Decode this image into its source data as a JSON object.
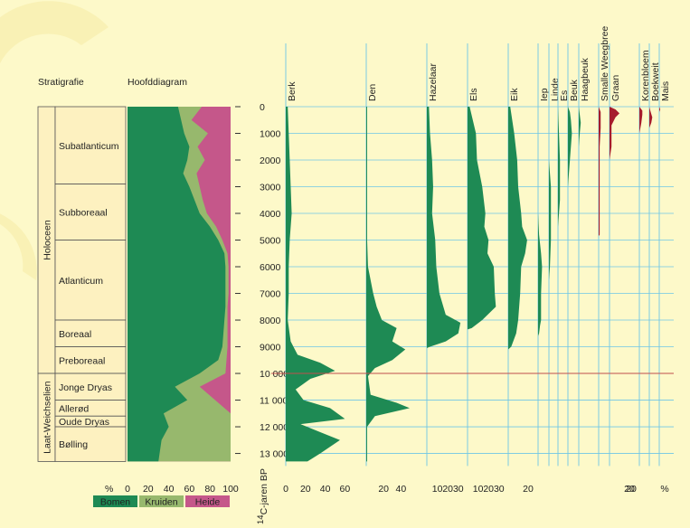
{
  "headers": {
    "stratigraphy": "Stratigrafie",
    "main_diagram": "Hoofddiagram"
  },
  "stratigraphy": {
    "groups": [
      {
        "label": "Holoceen",
        "from": 0,
        "to": 10000
      },
      {
        "label": "Laat-Weichselien",
        "from": 10000,
        "to": 13300
      }
    ],
    "zones": [
      {
        "label": "Subatlanticum",
        "from": 0,
        "to": 2900
      },
      {
        "label": "Subboreaal",
        "from": 2900,
        "to": 5000
      },
      {
        "label": "Atlanticum",
        "from": 5000,
        "to": 8000
      },
      {
        "label": "Boreaal",
        "from": 8000,
        "to": 9000
      },
      {
        "label": "Preboreaal",
        "from": 9000,
        "to": 10000
      },
      {
        "label": "Jonge Dryas",
        "from": 10000,
        "to": 11000
      },
      {
        "label": "Allerød",
        "from": 11000,
        "to": 11600
      },
      {
        "label": "Oude Dryas",
        "from": 11600,
        "to": 12000
      },
      {
        "label": "Bølling",
        "from": 12000,
        "to": 13300
      }
    ]
  },
  "chart_data": {
    "type": "area",
    "y_axis": {
      "label": "14C-jaren BP",
      "label_sup": "14",
      "label_rest": "C-jaren BP",
      "ticks": [
        0,
        1000,
        2000,
        3000,
        4000,
        5000,
        6000,
        7000,
        8000,
        9000,
        10000,
        11000,
        12000,
        13000
      ],
      "tick_labels": [
        "0",
        "1000",
        "2000",
        "3000",
        "4000",
        "5000",
        "6000",
        "7000",
        "8000",
        "9000",
        "10 000",
        "11 000",
        "12 000",
        "13 000"
      ],
      "range": [
        0,
        13300
      ]
    },
    "boundary_line": 10000,
    "main_diagram": {
      "unit": "%",
      "x_ticks": [
        "0",
        "20",
        "40",
        "60",
        "80",
        "100"
      ],
      "depths": [
        0,
        500,
        1000,
        1500,
        2000,
        2500,
        3000,
        3500,
        4000,
        4500,
        5000,
        5500,
        6000,
        6500,
        7000,
        7500,
        8000,
        8500,
        9000,
        9500,
        10000,
        10500,
        11000,
        11500,
        12000,
        12500,
        13300
      ],
      "bomen_cum": [
        49,
        52,
        55,
        60,
        58,
        54,
        60,
        65,
        70,
        80,
        88,
        94,
        95,
        95,
        95,
        95,
        94,
        93,
        92,
        88,
        70,
        46,
        58,
        35,
        40,
        33,
        30
      ],
      "kruiden_cum": [
        72,
        62,
        78,
        68,
        75,
        67,
        70,
        73,
        77,
        86,
        92,
        97,
        98,
        98,
        98,
        97,
        97,
        97,
        97,
        96,
        95,
        70,
        85,
        100,
        100,
        100,
        100
      ],
      "legend": [
        {
          "label": "Bomen",
          "color": "#1e8a54"
        },
        {
          "label": "Kruiden",
          "color": "#97b86d"
        },
        {
          "label": "Heide",
          "color": "#c5578a"
        }
      ]
    },
    "series": [
      {
        "name": "Berk",
        "scale": 80,
        "ticks": [
          "0",
          "20",
          "40",
          "60"
        ],
        "points": [
          [
            0,
            2
          ],
          [
            1000,
            3
          ],
          [
            2000,
            4
          ],
          [
            3000,
            5
          ],
          [
            4000,
            6
          ],
          [
            5000,
            4
          ],
          [
            6000,
            3
          ],
          [
            7000,
            3
          ],
          [
            8000,
            2
          ],
          [
            8800,
            5
          ],
          [
            9300,
            12
          ],
          [
            9600,
            35
          ],
          [
            9900,
            50
          ],
          [
            10200,
            25
          ],
          [
            10600,
            10
          ],
          [
            11000,
            18
          ],
          [
            11300,
            45
          ],
          [
            11700,
            60
          ],
          [
            11900,
            15
          ],
          [
            12200,
            35
          ],
          [
            12500,
            55
          ],
          [
            13000,
            35
          ],
          [
            13300,
            22
          ]
        ]
      },
      {
        "name": "Den",
        "scale": 70,
        "ticks": [
          "20",
          "40"
        ],
        "points": [
          [
            0,
            1
          ],
          [
            2000,
            1
          ],
          [
            4000,
            1
          ],
          [
            5000,
            1
          ],
          [
            6000,
            2
          ],
          [
            7000,
            8
          ],
          [
            7500,
            12
          ],
          [
            8000,
            18
          ],
          [
            8300,
            35
          ],
          [
            8800,
            30
          ],
          [
            9100,
            45
          ],
          [
            9500,
            30
          ],
          [
            9800,
            10
          ],
          [
            10100,
            2
          ],
          [
            10800,
            5
          ],
          [
            11100,
            35
          ],
          [
            11300,
            50
          ],
          [
            11600,
            10
          ],
          [
            12000,
            1
          ],
          [
            13300,
            1
          ]
        ]
      },
      {
        "name": "Hazelaar",
        "scale": 45,
        "ticks": [
          "10",
          "20",
          "30"
        ],
        "points": [
          [
            0,
            2
          ],
          [
            1000,
            3
          ],
          [
            2000,
            5
          ],
          [
            3000,
            6
          ],
          [
            4000,
            5
          ],
          [
            5000,
            8
          ],
          [
            6000,
            9
          ],
          [
            7000,
            12
          ],
          [
            7800,
            18
          ],
          [
            8100,
            32
          ],
          [
            8500,
            30
          ],
          [
            8800,
            18
          ],
          [
            9000,
            3
          ],
          [
            9050,
            0
          ]
        ]
      },
      {
        "name": "Els",
        "scale": 40,
        "ticks": [
          "10",
          "20",
          "30"
        ],
        "points": [
          [
            0,
            2
          ],
          [
            1000,
            8
          ],
          [
            2000,
            9
          ],
          [
            3000,
            14
          ],
          [
            4000,
            17
          ],
          [
            4500,
            16
          ],
          [
            5000,
            20
          ],
          [
            5500,
            19
          ],
          [
            6000,
            25
          ],
          [
            7000,
            26
          ],
          [
            7500,
            27
          ],
          [
            8000,
            14
          ],
          [
            8300,
            4
          ],
          [
            8350,
            0
          ]
        ]
      },
      {
        "name": "Eik",
        "scale": 40,
        "ticks": [
          "20"
        ],
        "points": [
          [
            0,
            2
          ],
          [
            1000,
            6
          ],
          [
            2000,
            9
          ],
          [
            3000,
            10
          ],
          [
            4000,
            13
          ],
          [
            4500,
            14
          ],
          [
            5000,
            19
          ],
          [
            5500,
            17
          ],
          [
            6000,
            13
          ],
          [
            7000,
            12
          ],
          [
            8000,
            10
          ],
          [
            8500,
            8
          ],
          [
            9000,
            3
          ],
          [
            9100,
            0
          ]
        ]
      },
      {
        "name": "Iep",
        "scale": 40,
        "ticks": [],
        "points": [
          [
            0,
            0
          ],
          [
            4000,
            0
          ],
          [
            4800,
            1
          ],
          [
            5500,
            3
          ],
          [
            6000,
            4
          ],
          [
            7000,
            3
          ],
          [
            7500,
            3
          ],
          [
            8000,
            3
          ],
          [
            8200,
            2
          ],
          [
            8500,
            1
          ],
          [
            8600,
            0
          ]
        ]
      },
      {
        "name": "Linde",
        "scale": 40,
        "ticks": [],
        "points": [
          [
            0,
            0
          ],
          [
            2000,
            0
          ],
          [
            2500,
            1
          ],
          [
            3000,
            2
          ],
          [
            4000,
            2
          ],
          [
            5000,
            2
          ],
          [
            6000,
            1
          ],
          [
            6500,
            0
          ]
        ]
      },
      {
        "name": "Es",
        "scale": 40,
        "ticks": [],
        "points": [
          [
            0,
            0
          ],
          [
            1000,
            1
          ],
          [
            2000,
            2
          ],
          [
            3000,
            2
          ],
          [
            3500,
            2
          ],
          [
            4000,
            1
          ],
          [
            4500,
            0
          ]
        ]
      },
      {
        "name": "Beuk",
        "scale": 40,
        "ticks": [],
        "points": [
          [
            0,
            0
          ],
          [
            200,
            2
          ],
          [
            500,
            3
          ],
          [
            1000,
            4
          ],
          [
            1500,
            3
          ],
          [
            2000,
            2
          ],
          [
            2500,
            1
          ],
          [
            3000,
            0
          ]
        ]
      },
      {
        "name": "Haagbeuk",
        "scale": 40,
        "ticks": [],
        "points": [
          [
            0,
            0
          ],
          [
            300,
            1
          ],
          [
            600,
            2
          ],
          [
            1000,
            1
          ],
          [
            1500,
            0
          ]
        ]
      },
      {
        "name": "Smalle Weegbree",
        "scale": 40,
        "ticks": [],
        "points": [
          [
            0,
            0
          ],
          [
            200,
            2
          ],
          [
            800,
            2
          ],
          [
            1500,
            1
          ],
          [
            3000,
            1
          ],
          [
            4800,
            1
          ],
          [
            4850,
            0
          ]
        ]
      },
      {
        "name": "Graan",
        "scale": 40,
        "ticks": [
          "20"
        ],
        "points": [
          [
            0,
            0
          ],
          [
            100,
            6
          ],
          [
            250,
            10
          ],
          [
            400,
            6
          ],
          [
            700,
            2
          ],
          [
            1500,
            2
          ],
          [
            2000,
            0
          ]
        ]
      },
      {
        "name": "Korenbloem",
        "scale": 40,
        "ticks": [
          "20"
        ],
        "points": [
          [
            0,
            0
          ],
          [
            150,
            3
          ],
          [
            300,
            3
          ],
          [
            600,
            2
          ],
          [
            1000,
            0
          ]
        ]
      },
      {
        "name": "Boekweit",
        "scale": 40,
        "ticks": [],
        "points": [
          [
            0,
            0
          ],
          [
            150,
            1
          ],
          [
            400,
            3
          ],
          [
            600,
            2
          ],
          [
            800,
            0
          ]
        ]
      },
      {
        "name": "Mais",
        "scale": 40,
        "ticks": [
          "%"
        ],
        "points": [
          [
            0,
            0
          ],
          [
            100,
            1
          ],
          [
            200,
            0
          ]
        ]
      }
    ]
  }
}
